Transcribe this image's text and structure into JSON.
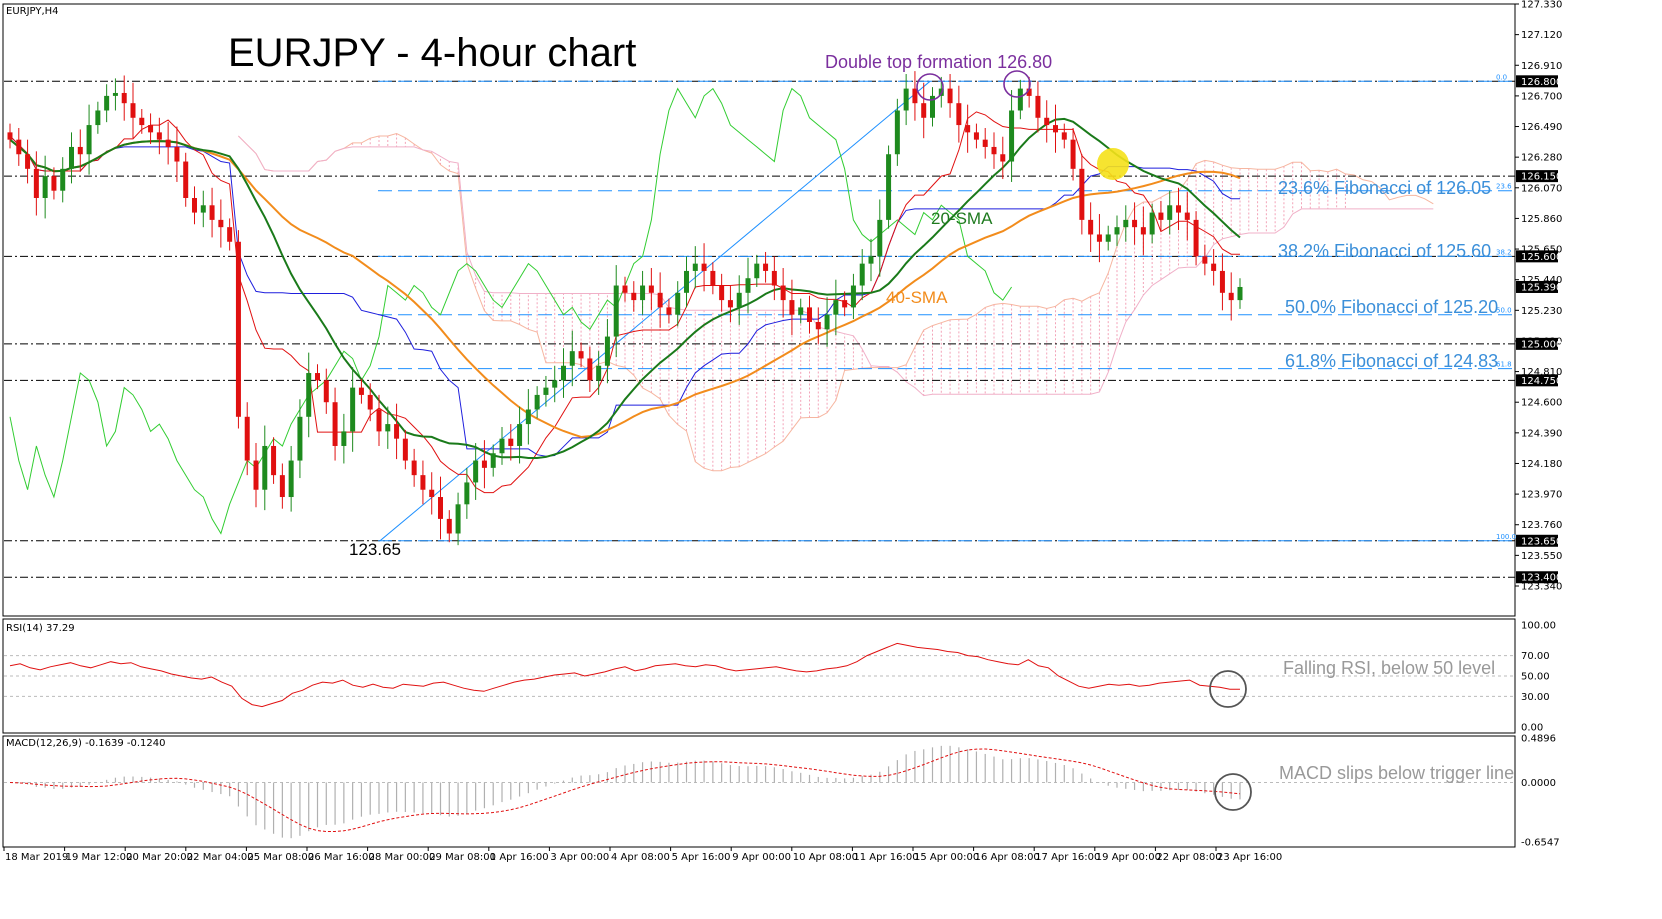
{
  "chart_data": {
    "type": "candlestick",
    "symbol_label": "EURJPY,H4",
    "title": "EURJPY - 4-hour chart",
    "price_axis": {
      "ylim": [
        123.34,
        127.33
      ],
      "ticks": [
        "127.330",
        "127.120",
        "126.910",
        "126.700",
        "126.490",
        "126.280",
        "126.070",
        "125.860",
        "125.650",
        "125.440",
        "125.230",
        "125.020",
        "124.810",
        "124.600",
        "124.390",
        "124.180",
        "123.970",
        "123.760",
        "123.550",
        "123.340"
      ],
      "boxes": [
        {
          "label": "126.800",
          "value": 126.8,
          "color": "#000000"
        },
        {
          "label": "126.150",
          "value": 126.15,
          "color": "#000000"
        },
        {
          "label": "125.600",
          "value": 125.6,
          "color": "#000000"
        },
        {
          "label": "125.390",
          "value": 125.39,
          "color": "#000000"
        },
        {
          "label": "125.000",
          "value": 125.0,
          "color": "#000000"
        },
        {
          "label": "124.750",
          "value": 124.75,
          "color": "#000000"
        },
        {
          "label": "123.650",
          "value": 123.65,
          "color": "#000000"
        },
        {
          "label": "123.400",
          "value": 123.4,
          "color": "#000000"
        }
      ]
    },
    "horizontal_levels": [
      126.8,
      126.15,
      125.6,
      125.0,
      124.75,
      123.65,
      123.4
    ],
    "fibonacci": {
      "levels": [
        {
          "pct": "0.0",
          "value": 126.8
        },
        {
          "pct": "23.6",
          "value": 126.05
        },
        {
          "pct": "38.2",
          "value": 125.6
        },
        {
          "pct": "50.0",
          "value": 125.2
        },
        {
          "pct": "61.8",
          "value": 124.83
        },
        {
          "pct": "100.0",
          "value": 123.65
        }
      ],
      "labels": [
        "23.6% Fibonacci of 126.05",
        "38.2% Fibonacci of 125.60",
        "50.0% Fibonacci of 125.20",
        "61.8% Fibonacci of 124.83"
      ],
      "color": "#1e90ff"
    },
    "annotations": {
      "double_top": "Double top formation 126.80",
      "low": "123.65",
      "sma20": "20-SMA",
      "sma40": "40-SMA",
      "rsi_note": "Falling RSI, below 50 level",
      "macd_note": "MACD slips below trigger line"
    },
    "x_axis": {
      "labels": [
        "18 Mar 2019",
        "19 Mar 12:00",
        "20 Mar 20:00",
        "22 Mar 04:00",
        "25 Mar 08:00",
        "26 Mar 16:00",
        "28 Mar 00:00",
        "29 Mar 08:00",
        "1 Apr 16:00",
        "3 Apr 00:00",
        "4 Apr 08:00",
        "5 Apr 16:00",
        "9 Apr 00:00",
        "10 Apr 08:00",
        "11 Apr 16:00",
        "15 Apr 00:00",
        "16 Apr 08:00",
        "17 Apr 16:00",
        "19 Apr 00:00",
        "22 Apr 08:00",
        "23 Apr 16:00"
      ]
    },
    "candles_close": [
      126.4,
      126.3,
      126.2,
      126.0,
      126.15,
      126.05,
      126.2,
      126.35,
      126.3,
      126.5,
      126.6,
      126.7,
      126.72,
      126.65,
      126.55,
      126.5,
      126.45,
      126.4,
      126.35,
      126.25,
      126.0,
      125.9,
      125.95,
      125.85,
      125.8,
      125.7,
      124.5,
      124.2,
      124.0,
      124.3,
      124.1,
      123.95,
      124.2,
      124.5,
      124.8,
      124.75,
      124.6,
      124.3,
      124.4,
      124.7,
      124.65,
      124.55,
      124.4,
      124.45,
      124.35,
      124.2,
      124.1,
      124.0,
      123.95,
      123.8,
      123.7,
      123.9,
      124.05,
      124.2,
      124.15,
      124.25,
      124.35,
      124.3,
      124.45,
      124.55,
      124.65,
      124.7,
      124.75,
      124.85,
      124.95,
      124.9,
      124.75,
      124.85,
      125.05,
      125.4,
      125.35,
      125.3,
      125.4,
      125.35,
      125.25,
      125.2,
      125.35,
      125.5,
      125.55,
      125.5,
      125.4,
      125.3,
      125.25,
      125.35,
      125.45,
      125.55,
      125.5,
      125.4,
      125.3,
      125.2,
      125.25,
      125.15,
      125.1,
      125.2,
      125.3,
      125.25,
      125.4,
      125.55,
      125.6,
      125.85,
      126.3,
      126.6,
      126.75,
      126.65,
      126.55,
      126.7,
      126.75,
      126.65,
      126.5,
      126.45,
      126.4,
      126.35,
      126.3,
      126.25,
      126.6,
      126.75,
      126.7,
      126.55,
      126.5,
      126.45,
      126.4,
      126.2,
      125.85,
      125.75,
      125.7,
      125.75,
      125.8,
      125.85,
      125.8,
      125.75,
      125.9,
      125.85,
      125.95,
      125.9,
      125.85,
      125.6,
      125.55,
      125.5,
      125.35,
      125.3,
      125.39
    ],
    "rsi": {
      "label": "RSI(14) 37.29",
      "ylim": [
        0,
        100
      ],
      "ticks": [
        "100.00",
        "70.00",
        "50.00",
        "30.00",
        "0.00"
      ],
      "values": [
        60,
        62,
        58,
        56,
        59,
        61,
        63,
        60,
        58,
        61,
        64,
        62,
        63,
        59,
        57,
        55,
        52,
        50,
        48,
        47,
        49,
        44,
        40,
        28,
        22,
        20,
        23,
        26,
        33,
        36,
        41,
        44,
        43,
        46,
        41,
        39,
        42,
        39,
        38,
        42,
        41,
        40,
        43,
        44,
        41,
        38,
        36,
        35,
        38,
        41,
        44,
        46,
        47,
        49,
        51,
        52,
        53,
        50,
        52,
        54,
        57,
        59,
        55,
        57,
        60,
        61,
        62,
        60,
        59,
        61,
        60,
        57,
        55,
        56,
        57,
        58,
        59,
        57,
        55,
        54,
        55,
        57,
        58,
        60,
        64,
        70,
        74,
        78,
        82,
        80,
        78,
        77,
        76,
        74,
        73,
        70,
        69,
        66,
        64,
        62,
        61,
        66,
        60,
        58,
        50,
        45,
        40,
        38,
        40,
        42,
        41,
        42,
        40,
        41,
        43,
        44,
        45,
        46,
        41,
        40,
        39,
        37,
        37
      ]
    },
    "macd": {
      "label": "MACD(12,26,9) -0.1639 -0.1240",
      "ylim": [
        -0.6547,
        0.4896
      ],
      "ticks": [
        "0.4896",
        "0.0000",
        "-0.6547"
      ]
    }
  }
}
